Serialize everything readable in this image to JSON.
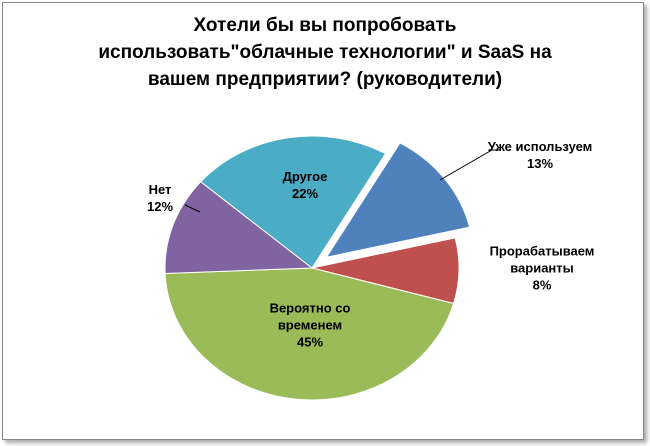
{
  "chart_data": {
    "type": "pie",
    "title": "Хотели бы вы попробовать использовать\"облачные технологии\" и SaaS на вашем предприятии? (руководители)",
    "categories": [
      "Уже используем",
      "Прорабатываем варианты",
      "Вероятно со временем",
      "Нет",
      "Другое"
    ],
    "values": [
      13,
      8,
      45,
      12,
      22
    ],
    "value_labels": [
      "13%",
      "8%",
      "45%",
      "12%",
      "22%"
    ],
    "colors": [
      "#4f81bd",
      "#c0504d",
      "#9bbb59",
      "#8064a2",
      "#4bacc6"
    ]
  }
}
